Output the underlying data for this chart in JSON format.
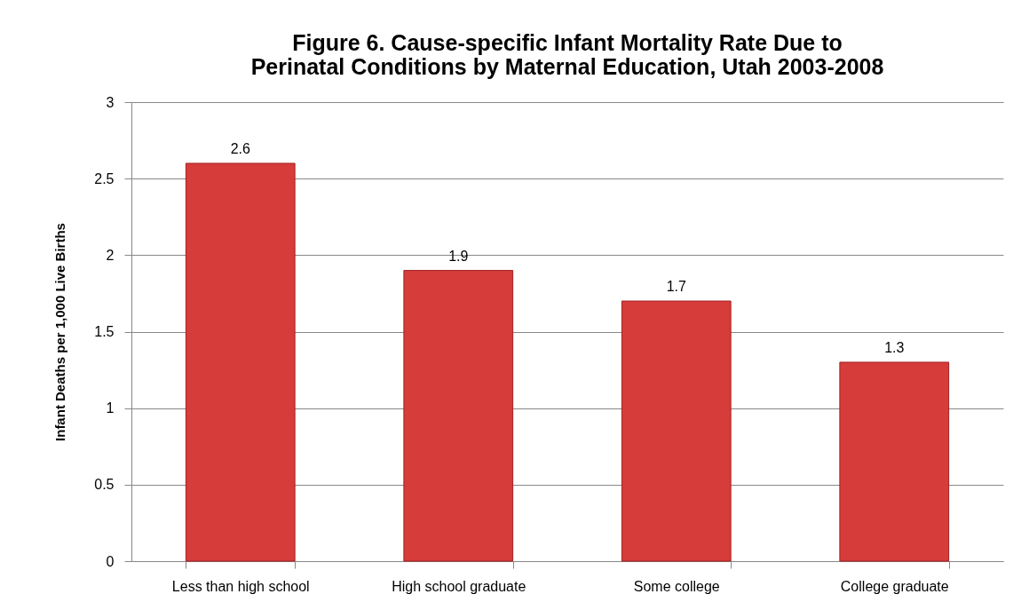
{
  "chart_data": {
    "type": "bar",
    "title": [
      "Figure 6.  Cause-specific Infant Mortality Rate Due to",
      "Perinatal Conditions by Maternal  Education, Utah 2003-2008"
    ],
    "ylabel": "Infant Deaths per 1,000 Live Births",
    "categories": [
      "Less than  high school",
      "High school graduate",
      "Some college",
      "College graduate"
    ],
    "values": [
      2.6,
      1.9,
      1.7,
      1.3
    ],
    "color": "#d63c3a",
    "ylim": [
      0,
      3
    ],
    "yticks": [
      0,
      0.5,
      1,
      1.5,
      2,
      2.5,
      3
    ],
    "grid": "y",
    "data_labels": true
  }
}
